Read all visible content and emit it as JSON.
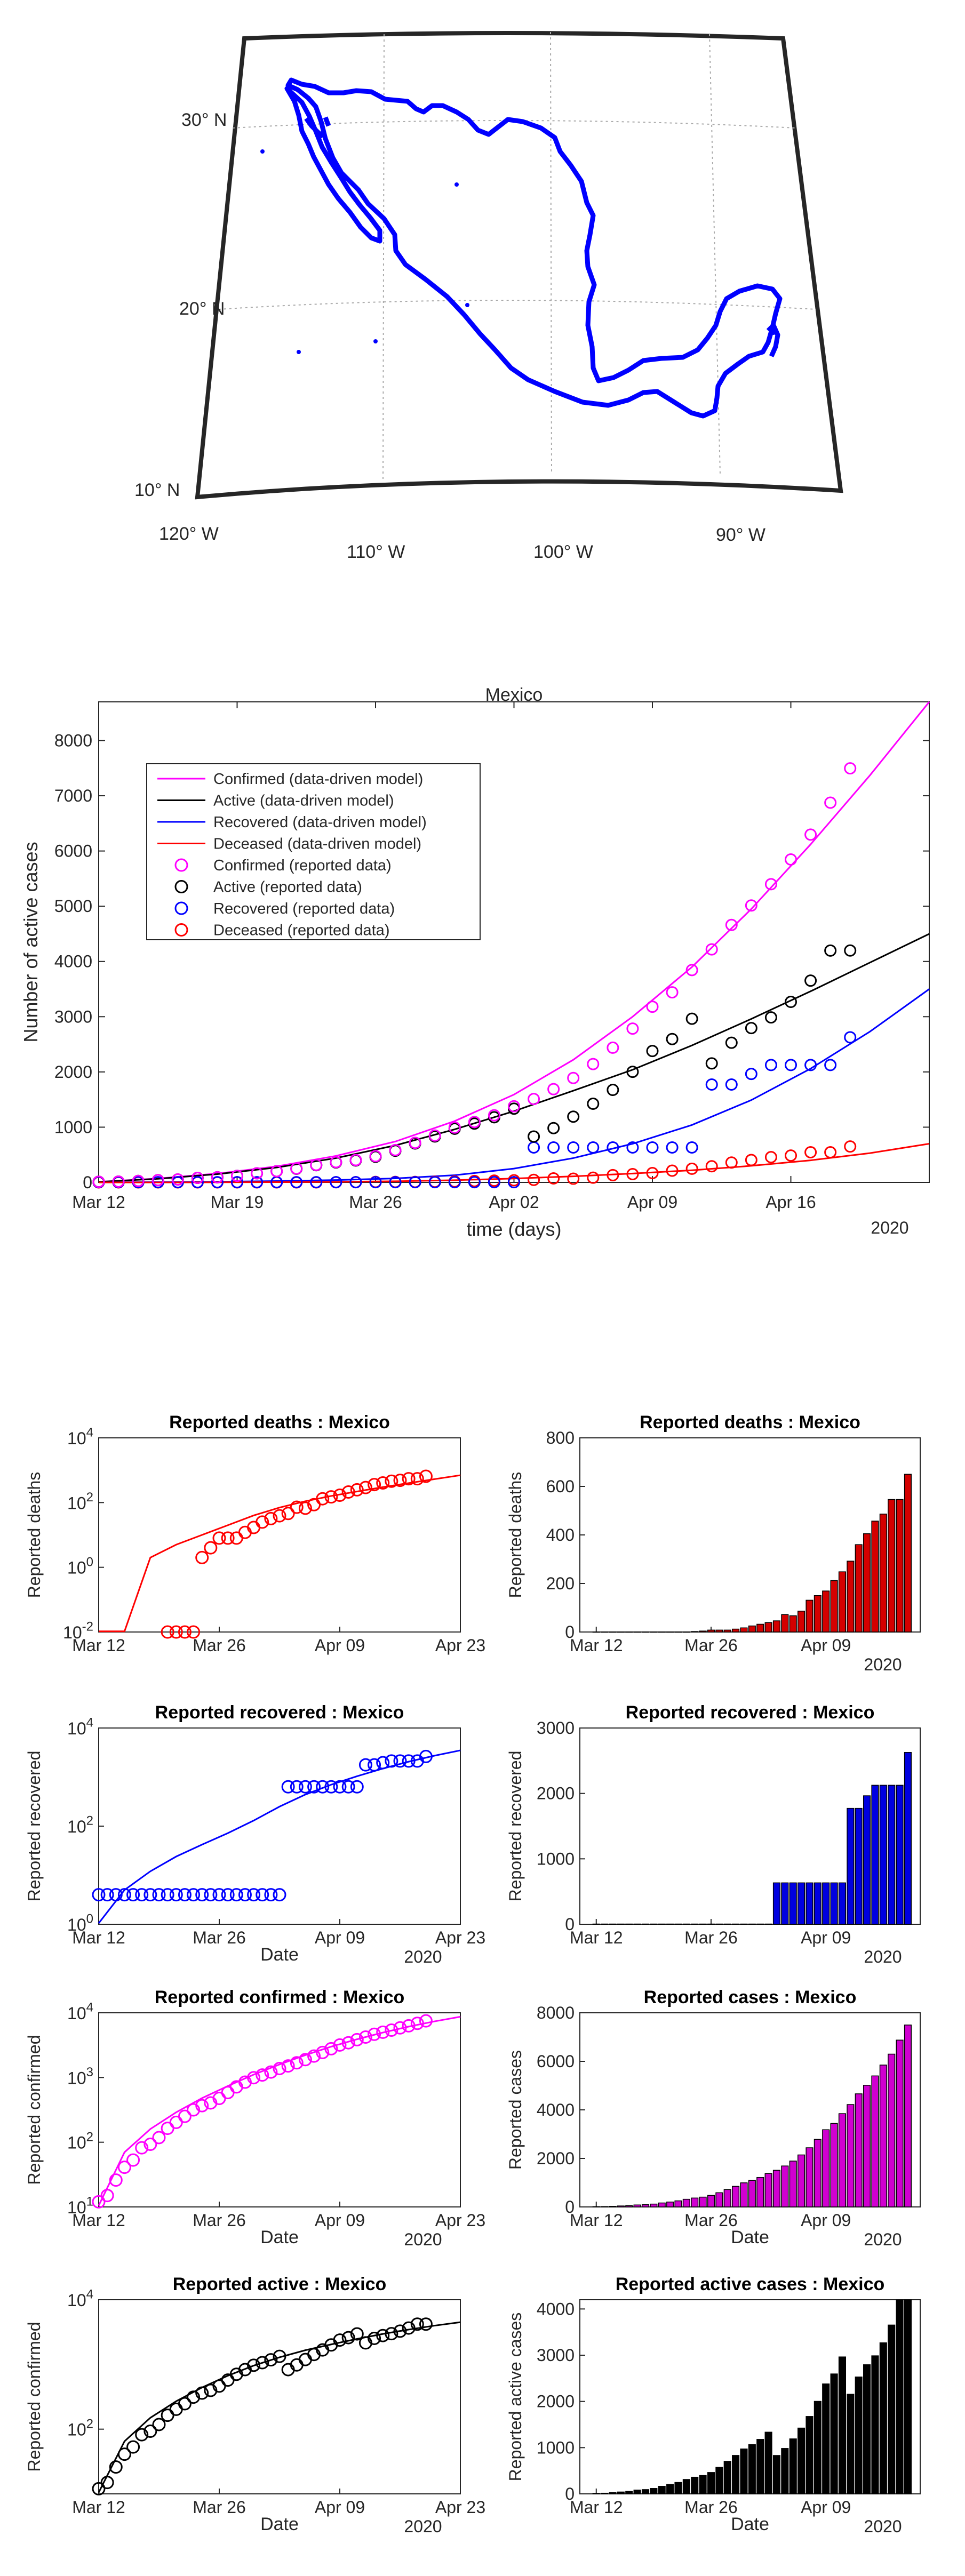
{
  "colors": {
    "confirmed": "#ff00ff",
    "active": "#000000",
    "recovered": "#0000ff",
    "deceased": "#ff0000",
    "deaths_bar": "#d40000",
    "recovered_bar": "#0000e0",
    "cases_bar": "#d000d0",
    "active_bar": "#000000",
    "map_border": "#0000ff"
  },
  "map": {
    "lat_labels": [
      "30° N",
      "20° N",
      "10° N"
    ],
    "lon_labels": [
      "120° W",
      "110° W",
      "100° W",
      "90° W"
    ]
  },
  "dates": [
    "Mar 12",
    "Mar 13",
    "Mar 14",
    "Mar 15",
    "Mar 16",
    "Mar 17",
    "Mar 18",
    "Mar 19",
    "Mar 20",
    "Mar 21",
    "Mar 22",
    "Mar 23",
    "Mar 24",
    "Mar 25",
    "Mar 26",
    "Mar 27",
    "Mar 28",
    "Mar 29",
    "Mar 30",
    "Mar 31",
    "Apr 01",
    "Apr 02",
    "Apr 03",
    "Apr 04",
    "Apr 05",
    "Apr 06",
    "Apr 07",
    "Apr 08",
    "Apr 09",
    "Apr 10",
    "Apr 11",
    "Apr 12",
    "Apr 13",
    "Apr 14",
    "Apr 15",
    "Apr 16",
    "Apr 17",
    "Apr 18",
    "Apr 19"
  ],
  "chart_data": [
    {
      "id": "main",
      "type": "line",
      "title": "Mexico",
      "xlabel": "time (days)",
      "ylabel": "Number of active cases",
      "year_label": "2020",
      "x_ticks": [
        "Mar 12",
        "Mar 19",
        "Mar 26",
        "Apr 02",
        "Apr 09",
        "Apr 16"
      ],
      "ylim": [
        0,
        8700
      ],
      "y_ticks": [
        "0",
        "1000",
        "2000",
        "3000",
        "4000",
        "5000",
        "6000",
        "7000",
        "8000"
      ],
      "legend": [
        {
          "label": "Confirmed (data-driven model)",
          "kind": "line",
          "color": "#ff00ff"
        },
        {
          "label": "Active (data-driven model)",
          "kind": "line",
          "color": "#000000"
        },
        {
          "label": "Recovered (data-driven model)",
          "kind": "line",
          "color": "#0000ff"
        },
        {
          "label": "Deceased (data-driven model)",
          "kind": "line",
          "color": "#ff0000"
        },
        {
          "label": "Confirmed (reported data)",
          "kind": "marker",
          "color": "#ff00ff"
        },
        {
          "label": "Active (reported data)",
          "kind": "marker",
          "color": "#000000"
        },
        {
          "label": "Recovered (reported data)",
          "kind": "marker",
          "color": "#0000ff"
        },
        {
          "label": "Deceased  (reported data)",
          "kind": "marker",
          "color": "#ff0000"
        }
      ],
      "confirmed": [
        12,
        15,
        26,
        41,
        53,
        82,
        93,
        118,
        164,
        203,
        251,
        316,
        367,
        405,
        475,
        585,
        717,
        848,
        993,
        1094,
        1215,
        1378,
        1510,
        1688,
        1890,
        2143,
        2439,
        2785,
        3181,
        3441,
        3844,
        4219,
        4661,
        5014,
        5399,
        5847,
        6297,
        6875,
        7497
      ],
      "active": [
        12,
        15,
        26,
        41,
        53,
        82,
        93,
        118,
        164,
        203,
        247,
        312,
        361,
        397,
        463,
        573,
        705,
        832,
        972,
        1065,
        1179,
        1335,
        831,
        983,
        1190,
        1424,
        1675,
        2002,
        2379,
        2595,
        2963,
        2155,
        2529,
        2794,
        2987,
        3268,
        3653,
        4197,
        4198
      ],
      "recovered": [
        4,
        4,
        4,
        4,
        4,
        4,
        4,
        4,
        4,
        4,
        4,
        4,
        4,
        4,
        4,
        4,
        4,
        4,
        4,
        4,
        4,
        4,
        633,
        633,
        633,
        633,
        633,
        633,
        633,
        633,
        633,
        1772,
        1772,
        1964,
        2125,
        2125,
        2125,
        2125,
        2627
      ],
      "deceased": [
        0,
        0,
        0,
        0,
        0,
        0,
        0,
        0,
        0,
        0,
        0,
        0,
        2,
        4,
        8,
        8,
        8,
        12,
        17,
        25,
        32,
        39,
        46,
        72,
        67,
        86,
        131,
        150,
        169,
        212,
        248,
        292,
        360,
        405,
        457,
        486,
        546,
        546,
        650
      ],
      "model": {
        "days": [
          0,
          3,
          6,
          9,
          12,
          15,
          18,
          21,
          24,
          27,
          30,
          33,
          36,
          39,
          42
        ],
        "confirmed": [
          10,
          70,
          160,
          290,
          480,
          740,
          1110,
          1590,
          2220,
          3000,
          3900,
          4950,
          6120,
          7370,
          8700
        ],
        "active": [
          10,
          65,
          150,
          270,
          440,
          670,
          960,
          1290,
          1660,
          2040,
          2480,
          2960,
          3460,
          3980,
          4500
        ],
        "recovered": [
          0,
          5,
          12,
          24,
          42,
          72,
          130,
          250,
          440,
          700,
          1040,
          1490,
          2060,
          2730,
          3500
        ],
        "deceased": [
          0,
          0,
          2,
          5,
          10,
          20,
          40,
          70,
          110,
          160,
          220,
          300,
          400,
          530,
          700
        ]
      }
    },
    {
      "id": "deaths_log",
      "type": "scatter",
      "title": "Reported deaths : Mexico",
      "ylabel": "Reported deaths",
      "x_ticks": [
        "Mar 12",
        "Mar 26",
        "Apr 09",
        "Apr 23"
      ],
      "y_ticks": [
        "10^{-2}",
        "10^{0}",
        "10^{2}",
        "10^{4}"
      ],
      "y_log_range": [
        -2,
        4
      ],
      "series_ref": "deceased",
      "start_index": 8,
      "model_ref": "deceased"
    },
    {
      "id": "deaths_bar",
      "type": "bar",
      "title": "Reported deaths : Mexico",
      "ylabel": "Reported deaths",
      "x_ticks": [
        "Mar 12",
        "Mar 26",
        "Apr 09"
      ],
      "year_label": "2020",
      "y_ticks": [
        "0",
        "200",
        "400",
        "600",
        "800"
      ],
      "ylim": [
        0,
        800
      ],
      "series_ref": "deceased"
    },
    {
      "id": "recovered_log",
      "type": "scatter",
      "title": "Reported recovered : Mexico",
      "ylabel": "Reported recovered",
      "xlabel": "Date",
      "year_label": "2020",
      "x_ticks": [
        "Mar 12",
        "Mar 26",
        "Apr 09",
        "Apr 23"
      ],
      "y_ticks": [
        "10^{0}",
        "10^{2}",
        "10^{4}"
      ],
      "y_log_range": [
        0,
        4
      ],
      "series_ref": "recovered",
      "start_index": 0,
      "model_ref": "recovered"
    },
    {
      "id": "recovered_bar",
      "type": "bar",
      "title": "Reported recovered : Mexico",
      "ylabel": "Reported recovered",
      "x_ticks": [
        "Mar 12",
        "Mar 26",
        "Apr 09"
      ],
      "year_label": "2020",
      "y_ticks": [
        "0",
        "1000",
        "2000",
        "3000"
      ],
      "ylim": [
        0,
        3000
      ],
      "series_ref": "recovered"
    },
    {
      "id": "confirmed_log",
      "type": "scatter",
      "title": "Reported confirmed : Mexico",
      "ylabel": "Reported confirmed",
      "xlabel": "Date",
      "year_label": "2020",
      "x_ticks": [
        "Mar 12",
        "Mar 26",
        "Apr 09",
        "Apr 23"
      ],
      "y_ticks": [
        "10^{1}",
        "10^{2}",
        "10^{3}",
        "10^{4}"
      ],
      "y_log_range": [
        1,
        4
      ],
      "series_ref": "confirmed",
      "start_index": 0,
      "model_ref": "confirmed"
    },
    {
      "id": "cases_bar",
      "type": "bar",
      "title": "Reported cases : Mexico",
      "ylabel": "Reported cases",
      "xlabel": "Date",
      "x_ticks": [
        "Mar 12",
        "Mar 26",
        "Apr 09"
      ],
      "year_label": "2020",
      "y_ticks": [
        "0",
        "2000",
        "4000",
        "6000",
        "8000"
      ],
      "ylim": [
        0,
        8000
      ],
      "series_ref": "confirmed"
    },
    {
      "id": "active_log",
      "type": "scatter",
      "title": "Reported active : Mexico",
      "ylabel": "Reported confirmed",
      "xlabel": "Date",
      "year_label": "2020",
      "x_ticks": [
        "Mar 12",
        "Mar 26",
        "Apr 09",
        "Apr 23"
      ],
      "y_ticks": [
        "10^{2}",
        "10^{4}"
      ],
      "y_log_range": [
        1,
        4
      ],
      "series_ref": "active",
      "start_index": 0,
      "model_ref": "active"
    },
    {
      "id": "active_bar",
      "type": "bar",
      "title": "Reported active cases : Mexico",
      "ylabel": "Reported active cases",
      "xlabel": "Date",
      "x_ticks": [
        "Mar 12",
        "Mar 26",
        "Apr 09"
      ],
      "year_label": "2020",
      "y_ticks": [
        "0",
        "1000",
        "2000",
        "3000",
        "4000"
      ],
      "ylim": [
        0,
        4200
      ],
      "series_ref": "active"
    }
  ]
}
